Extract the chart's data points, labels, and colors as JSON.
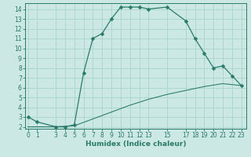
{
  "xlabel": "Humidex (Indice chaleur)",
  "background_color": "#cce8e4",
  "grid_color": "#aad4ce",
  "line_color": "#2a7a6a",
  "x_main": [
    0,
    1,
    3,
    4,
    5,
    6,
    7,
    8,
    9,
    10,
    11,
    12,
    13,
    15,
    17,
    18,
    19,
    20,
    21,
    22,
    23
  ],
  "y_main": [
    3.0,
    2.5,
    2.0,
    2.0,
    2.2,
    7.5,
    11.0,
    11.5,
    13.0,
    14.2,
    14.2,
    14.2,
    14.0,
    14.2,
    12.8,
    11.0,
    9.5,
    8.0,
    8.2,
    7.2,
    6.2
  ],
  "x_low": [
    0,
    3,
    5,
    7,
    9,
    11,
    13,
    15,
    17,
    19,
    21,
    23
  ],
  "y_low": [
    2.0,
    2.0,
    2.1,
    2.8,
    3.5,
    4.2,
    4.8,
    5.3,
    5.7,
    6.1,
    6.4,
    6.2
  ],
  "xlim": [
    -0.3,
    23.5
  ],
  "ylim": [
    1.8,
    14.6
  ],
  "yticks": [
    2,
    3,
    4,
    5,
    6,
    7,
    8,
    9,
    10,
    11,
    12,
    13,
    14
  ],
  "xticks": [
    0,
    1,
    3,
    4,
    5,
    6,
    7,
    8,
    9,
    10,
    11,
    12,
    13,
    15,
    17,
    18,
    19,
    20,
    21,
    22,
    23
  ],
  "tick_fontsize": 5.5,
  "xlabel_fontsize": 6.5,
  "marker_size": 2.5,
  "linewidth": 0.9
}
